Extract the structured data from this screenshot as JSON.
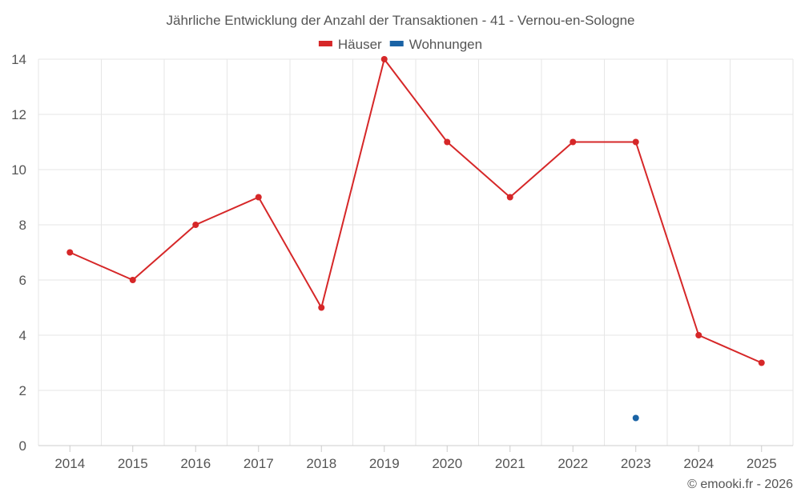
{
  "chart_data": {
    "type": "line",
    "title": "Jährliche Entwicklung der Anzahl der Transaktionen - 41 - Vernou-en-Sologne",
    "categories": [
      "2014",
      "2015",
      "2016",
      "2017",
      "2018",
      "2019",
      "2020",
      "2021",
      "2022",
      "2023",
      "2024",
      "2025"
    ],
    "series": [
      {
        "name": "Häuser",
        "color": "#d62728",
        "values": [
          7,
          6,
          8,
          9,
          5,
          14,
          11,
          9,
          11,
          11,
          4,
          3
        ]
      },
      {
        "name": "Wohnungen",
        "color": "#1a63a5",
        "values": [
          null,
          null,
          null,
          null,
          null,
          null,
          null,
          null,
          null,
          1,
          null,
          null
        ]
      }
    ],
    "ylim": [
      0,
      14
    ],
    "yticks": [
      0,
      2,
      4,
      6,
      8,
      10,
      12,
      14
    ],
    "grid": true,
    "legend_position": "top-center"
  },
  "credit": "© emooki.fr - 2026"
}
